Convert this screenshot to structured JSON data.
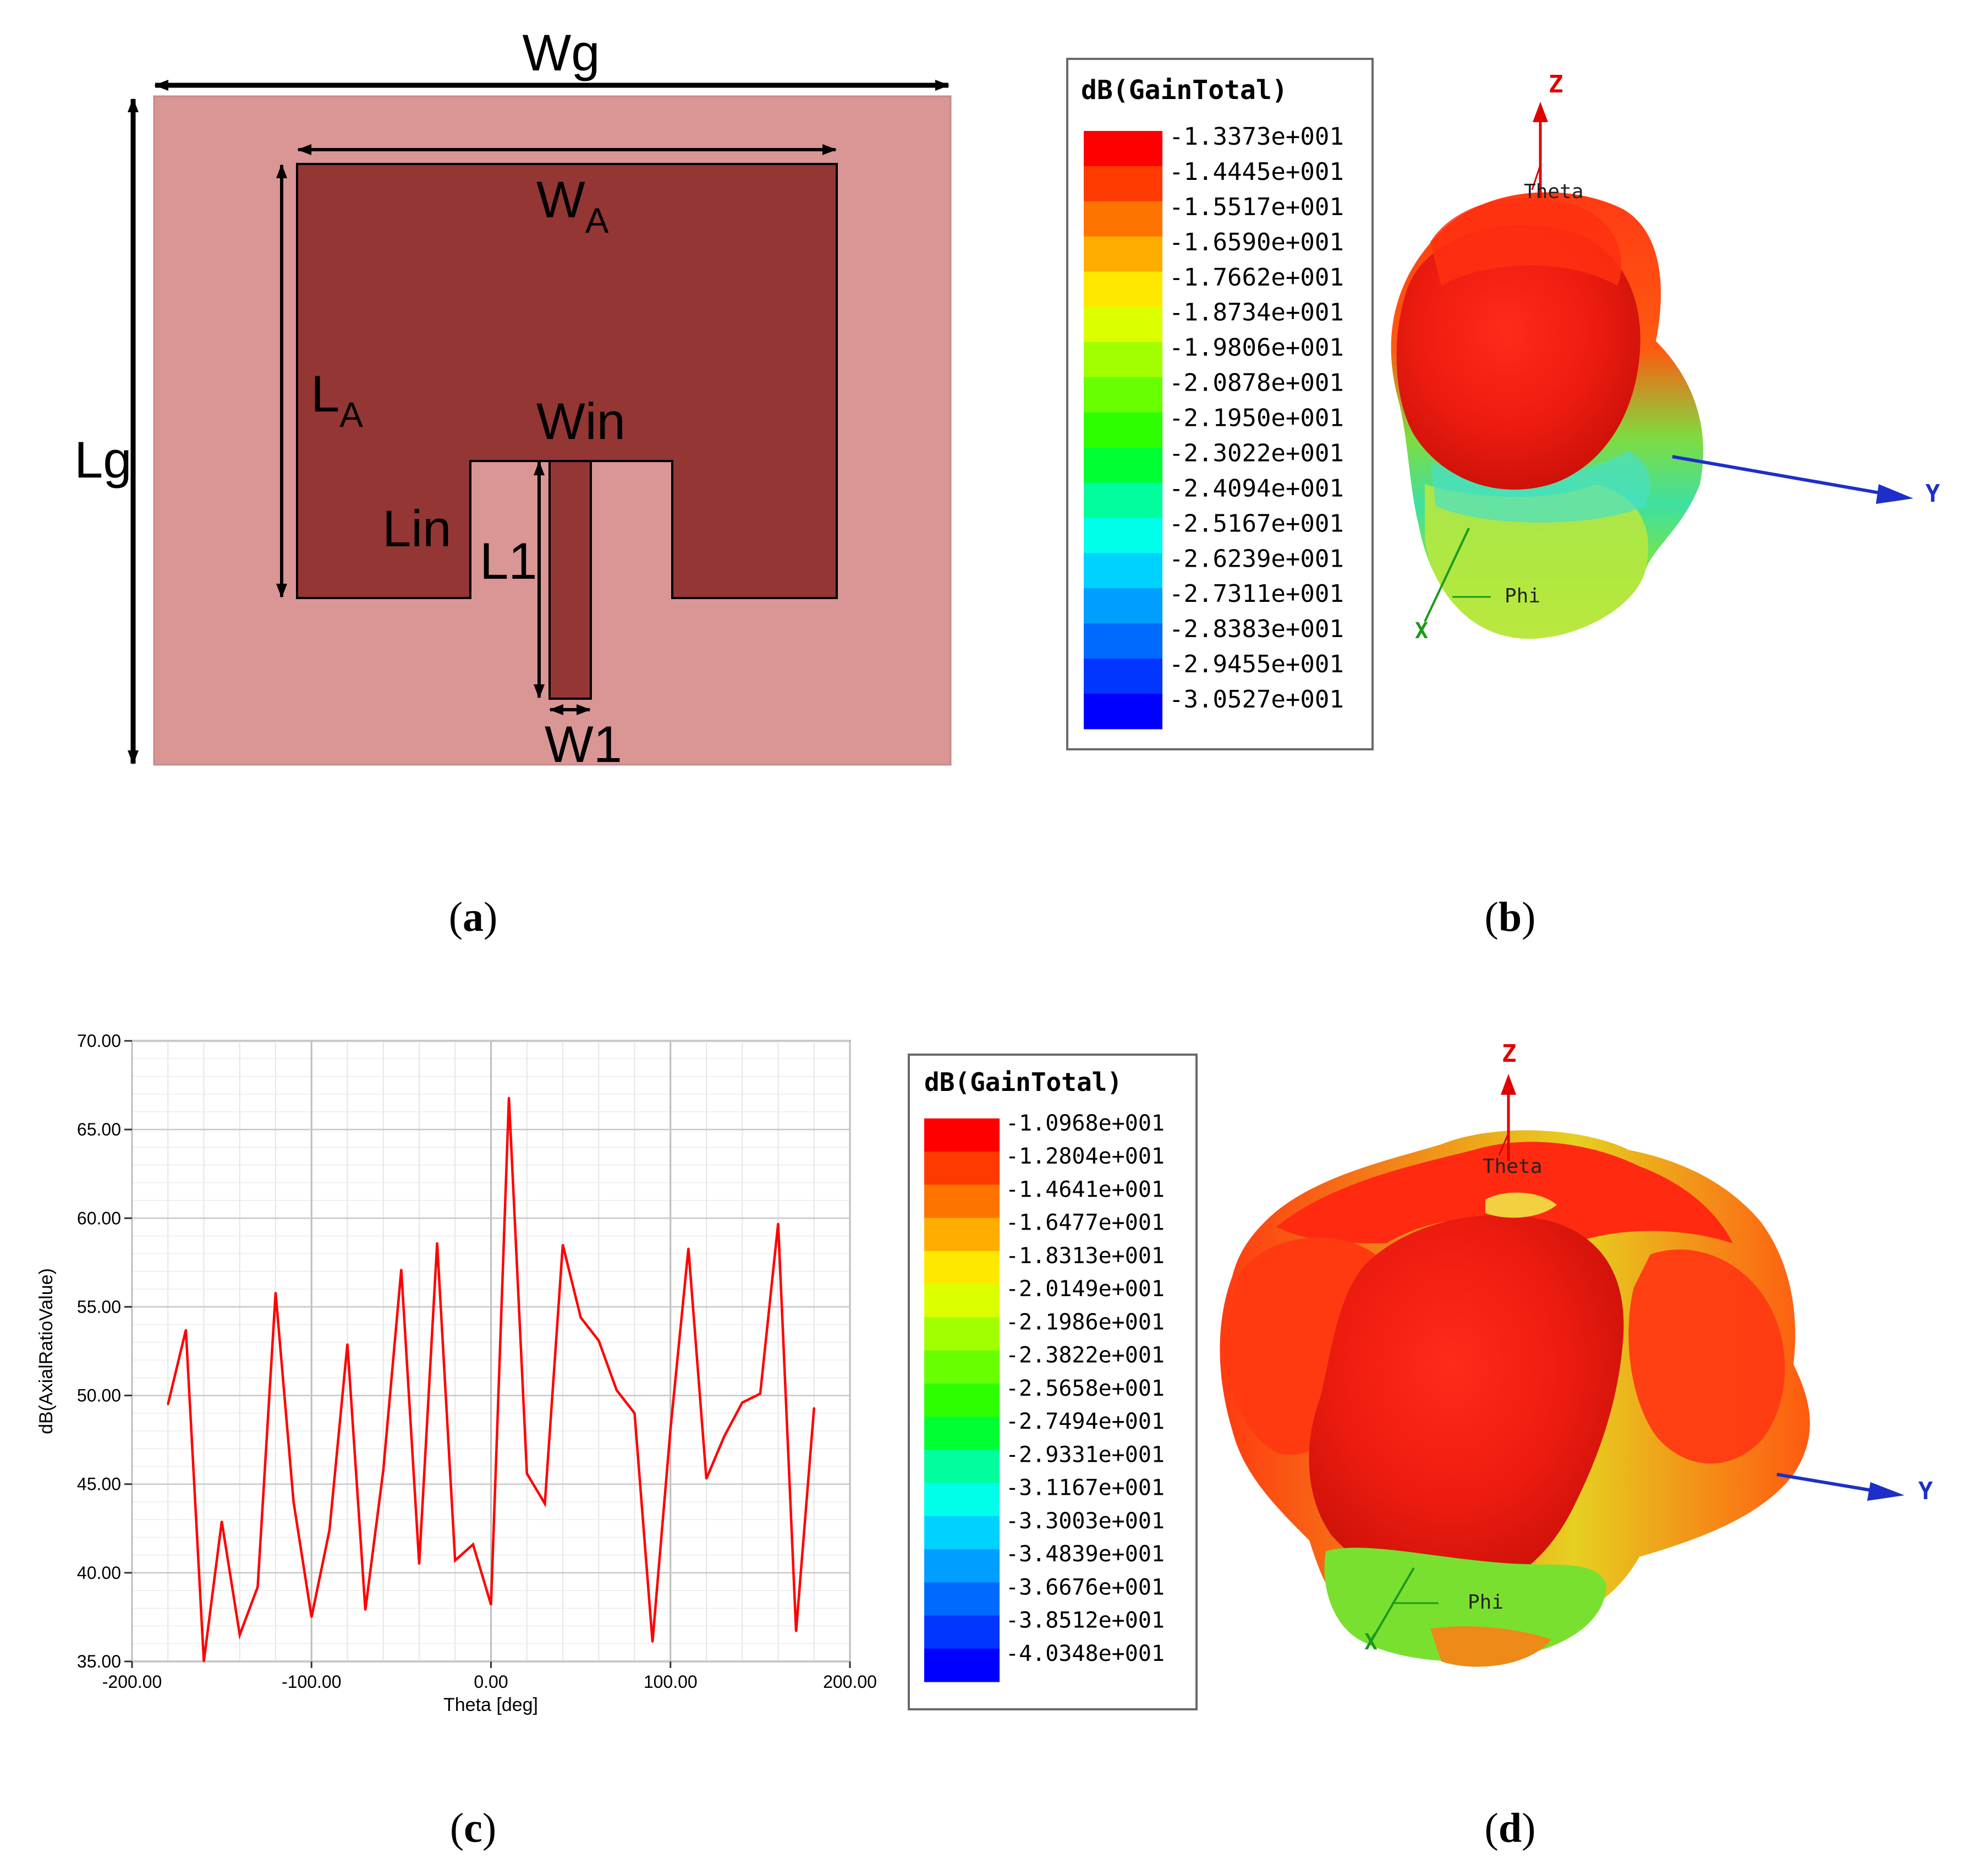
{
  "panels": {
    "a": {
      "caption": "a",
      "labels": {
        "wg": "Wg",
        "wa": "W",
        "wa_sub": "A",
        "la": "L",
        "la_sub": "A",
        "lg": "Lg",
        "win": "Win",
        "lin": "Lin",
        "l1": "L1",
        "w1": "W1"
      },
      "colors": {
        "substrate": "#d99694",
        "patch": "#943634",
        "arrow": "#000000"
      }
    },
    "b": {
      "caption": "b",
      "legend_title": "dB(GainTotal)",
      "legend_values": [
        "-1.3373e+001",
        "-1.4445e+001",
        "-1.5517e+001",
        "-1.6590e+001",
        "-1.7662e+001",
        "-1.8734e+001",
        "-1.9806e+001",
        "-2.0878e+001",
        "-2.1950e+001",
        "-2.3022e+001",
        "-2.4094e+001",
        "-2.5167e+001",
        "-2.6239e+001",
        "-2.7311e+001",
        "-2.8383e+001",
        "-2.9455e+001",
        "-3.0527e+001"
      ],
      "axis_labels": {
        "z": "Z",
        "y": "Y",
        "x": "X",
        "theta": "Theta",
        "phi": "Phi"
      }
    },
    "c": {
      "caption": "c"
    },
    "d": {
      "caption": "d",
      "legend_title": "dB(GainTotal)",
      "legend_values": [
        "-1.0968e+001",
        "-1.2804e+001",
        "-1.4641e+001",
        "-1.6477e+001",
        "-1.8313e+001",
        "-2.0149e+001",
        "-2.1986e+001",
        "-2.3822e+001",
        "-2.5658e+001",
        "-2.7494e+001",
        "-2.9331e+001",
        "-3.1167e+001",
        "-3.3003e+001",
        "-3.4839e+001",
        "-3.6676e+001",
        "-3.8512e+001",
        "-4.0348e+001"
      ],
      "axis_labels": {
        "z": "Z",
        "y": "Y",
        "x": "X",
        "theta": "Theta",
        "phi": "Phi"
      }
    }
  },
  "legend_colors": [
    "#ff0000",
    "#ff3a00",
    "#ff7400",
    "#ffae00",
    "#ffe800",
    "#dcff00",
    "#a2ff00",
    "#68ff00",
    "#2eff00",
    "#00ff32",
    "#00ff9c",
    "#00ffe8",
    "#00d2ff",
    "#009eff",
    "#006aff",
    "#0036ff",
    "#0000ff"
  ],
  "chart_data": {
    "type": "line",
    "title": "",
    "xlabel": "Theta [deg]",
    "ylabel": "dB(AxialRatioValue)",
    "xlim": [
      -200,
      200
    ],
    "ylim": [
      35,
      70
    ],
    "x_ticks": [
      "-200.00",
      "-100.00",
      "0.00",
      "100.00",
      "200.00"
    ],
    "y_ticks": [
      "35.00",
      "40.00",
      "45.00",
      "50.00",
      "55.00",
      "60.00",
      "65.00",
      "70.00"
    ],
    "grid": true,
    "series": [
      {
        "name": "dB(AxialRatioValue)",
        "color": "#ff0000",
        "x": [
          -180,
          -170,
          -160,
          -150,
          -140,
          -130,
          -120,
          -110,
          -100,
          -90,
          -80,
          -70,
          -60,
          -50,
          -40,
          -30,
          -20,
          -10,
          0,
          10,
          20,
          30,
          40,
          50,
          60,
          70,
          80,
          90,
          100,
          110,
          120,
          130,
          140,
          150,
          160,
          170,
          180
        ],
        "y": [
          49.5,
          53.7,
          35.0,
          42.9,
          36.5,
          39.2,
          55.8,
          44.0,
          37.5,
          42.4,
          52.9,
          37.9,
          45.8,
          57.1,
          40.5,
          58.6,
          40.7,
          41.6,
          38.2,
          66.8,
          45.6,
          43.9,
          58.5,
          54.4,
          53.1,
          50.3,
          49.0,
          36.1,
          48.1,
          58.3,
          45.3,
          47.7,
          49.6,
          50.1,
          59.7,
          36.7,
          49.3
        ]
      }
    ]
  }
}
